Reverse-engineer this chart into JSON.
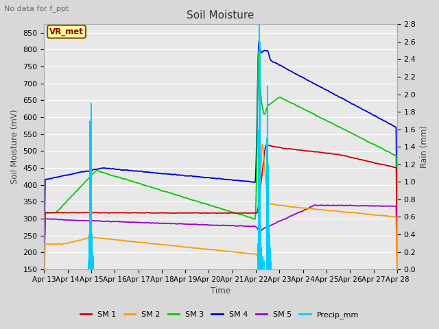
{
  "title": "Soil Moisture",
  "top_left_text": "No data for f_ppt",
  "box_label": "VR_met",
  "ylabel_left": "Soil Moisture (mV)",
  "ylabel_right": "Rain (mm)",
  "xlabel": "Time",
  "ylim_left": [
    150,
    875
  ],
  "ylim_right": [
    0.0,
    2.8
  ],
  "yticks_left": [
    150,
    200,
    250,
    300,
    350,
    400,
    450,
    500,
    550,
    600,
    650,
    700,
    750,
    800,
    850
  ],
  "yticks_right": [
    0.0,
    0.2,
    0.4,
    0.6,
    0.8,
    1.0,
    1.2,
    1.4,
    1.6,
    1.8,
    2.0,
    2.2,
    2.4,
    2.6,
    2.8
  ],
  "xtick_labels": [
    "Apr 13",
    "Apr 14",
    "Apr 15",
    "Apr 16",
    "Apr 17",
    "Apr 18",
    "Apr 19",
    "Apr 20",
    "Apr 21",
    "Apr 22",
    "Apr 23",
    "Apr 24",
    "Apr 25",
    "Apr 26",
    "Apr 27",
    "Apr 28"
  ],
  "colors": {
    "SM1": "#cc0000",
    "SM2": "#ff9900",
    "SM3": "#00cc00",
    "SM4": "#0000cc",
    "SM5": "#9900cc",
    "Precip": "#00ccff",
    "background": "#e8e8e8",
    "grid": "#ffffff"
  },
  "legend_labels": [
    "SM 1",
    "SM 2",
    "SM 3",
    "SM 4",
    "SM 5",
    "Precip_mm"
  ]
}
